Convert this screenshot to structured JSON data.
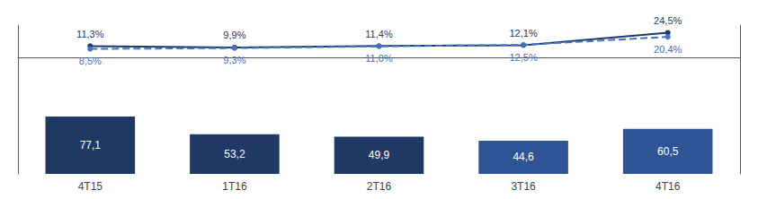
{
  "chart_data": {
    "type": "bar",
    "categories": [
      "4T15",
      "1T16",
      "2T16",
      "3T16",
      "4T16"
    ],
    "ylim": [
      -115,
      32
    ],
    "y2lim": [
      0,
      200
    ],
    "grid": false,
    "tick_labels": "x",
    "data_labels": true,
    "series": [
      {
        "type": "bar",
        "axis": "y2",
        "colors": [
          "#1F3864",
          "#1F3864",
          "#1F3864",
          "#2E5496",
          "#2E5496"
        ],
        "values": [
          77.1,
          53.2,
          49.9,
          44.6,
          60.5
        ],
        "value_labels": [
          "77,1",
          "53,2",
          "49,9",
          "44,6",
          "60,5"
        ]
      },
      {
        "type": "line",
        "color": "#1F3864",
        "marker": "circle",
        "line_style": "solid",
        "values": [
          11.3,
          9.9,
          11.4,
          12.1,
          24.5
        ],
        "value_labels": [
          "11,3%",
          "9,9%",
          "11,4%",
          "12,1%",
          "24,5%"
        ]
      },
      {
        "type": "line",
        "color": "#4472C4",
        "marker": "circle",
        "line_style": "dashed",
        "values": [
          8.5,
          9.3,
          11.0,
          12.5,
          20.4
        ],
        "value_labels": [
          "8,5%",
          "9,3%",
          "11,0%",
          "12,5%",
          "20,4%"
        ]
      }
    ]
  }
}
